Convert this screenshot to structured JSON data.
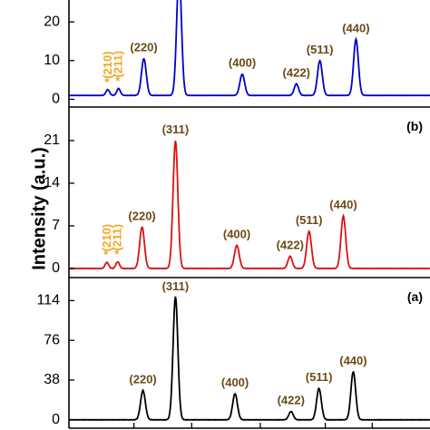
{
  "chart_data": {
    "type": "line",
    "xlabel": "",
    "ylabel": "Intensity (a.u.)",
    "x_ticks": [],
    "panels": [
      {
        "panel_label": "",
        "color": "#0000cc",
        "ylim": [
          -2,
          28
        ],
        "y_ticks": [
          "0",
          "10",
          "20"
        ],
        "y_tick_values": [
          0,
          10,
          20
        ],
        "baseline": 1,
        "peaks": [
          {
            "x": 0.1075,
            "h": 1.5,
            "w": 0.009,
            "label": "(210)",
            "impurity": true
          },
          {
            "x": 0.1375,
            "h": 1.8,
            "w": 0.009,
            "label": "(211)",
            "impurity": true
          },
          {
            "x": 0.2075,
            "h": 9.5,
            "w": 0.012,
            "label": "(220)"
          },
          {
            "x": 0.305,
            "h": 32,
            "w": 0.012,
            "label": ""
          },
          {
            "x": 0.48,
            "h": 5.5,
            "w": 0.012,
            "label": "(400)"
          },
          {
            "x": 0.63,
            "h": 3.0,
            "w": 0.011,
            "label": "(422)"
          },
          {
            "x": 0.695,
            "h": 9.0,
            "w": 0.012,
            "label": "(511)"
          },
          {
            "x": 0.795,
            "h": 14.5,
            "w": 0.012,
            "label": "(440)"
          }
        ]
      },
      {
        "panel_label": "(b)",
        "color": "#dd1111",
        "ylim": [
          -1.5,
          26.5
        ],
        "y_ticks": [
          "0",
          "7",
          "14",
          "21"
        ],
        "y_tick_values": [
          0,
          7,
          14,
          21
        ],
        "baseline": 0,
        "peaks": [
          {
            "x": 0.105,
            "h": 1.0,
            "w": 0.009,
            "label": "(210)",
            "impurity": true
          },
          {
            "x": 0.135,
            "h": 1.1,
            "w": 0.009,
            "label": "(211)",
            "impurity": true
          },
          {
            "x": 0.2025,
            "h": 6.8,
            "w": 0.012,
            "label": "(220)"
          },
          {
            "x": 0.295,
            "h": 21.0,
            "w": 0.012,
            "label": "(311)"
          },
          {
            "x": 0.465,
            "h": 3.8,
            "w": 0.012,
            "label": "(400)"
          },
          {
            "x": 0.6125,
            "h": 2.0,
            "w": 0.011,
            "label": "(422)"
          },
          {
            "x": 0.665,
            "h": 6.1,
            "w": 0.012,
            "label": "(511)"
          },
          {
            "x": 0.76,
            "h": 8.6,
            "w": 0.012,
            "label": "(440)"
          }
        ]
      },
      {
        "panel_label": "(a)",
        "color": "#000000",
        "ylim": [
          -8,
          136
        ],
        "y_ticks": [
          "0",
          "38",
          "76",
          "114"
        ],
        "y_tick_values": [
          0,
          38,
          76,
          114
        ],
        "baseline": 0,
        "peaks": [
          {
            "x": 0.205,
            "h": 28,
            "w": 0.012,
            "label": "(220)"
          },
          {
            "x": 0.295,
            "h": 118,
            "w": 0.012,
            "label": "(311)"
          },
          {
            "x": 0.46,
            "h": 25,
            "w": 0.012,
            "label": "(400)"
          },
          {
            "x": 0.615,
            "h": 8,
            "w": 0.011,
            "label": "(422)"
          },
          {
            "x": 0.6925,
            "h": 30,
            "w": 0.012,
            "label": "(511)"
          },
          {
            "x": 0.7875,
            "h": 46,
            "w": 0.012,
            "label": "(440)"
          }
        ]
      }
    ]
  }
}
